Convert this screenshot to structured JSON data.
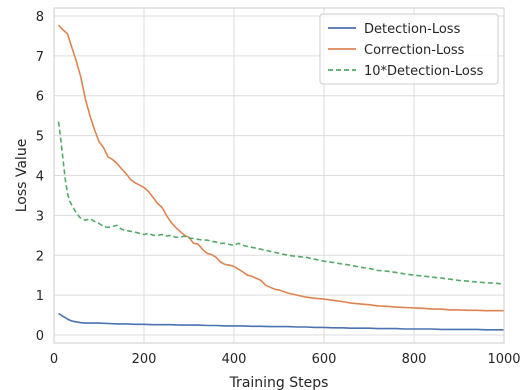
{
  "chart_data": {
    "type": "line",
    "xlabel": "Training Steps",
    "ylabel": "Loss Value",
    "xlim": [
      0,
      1000
    ],
    "ylim": [
      -0.2,
      8.2
    ],
    "xticks": [
      0,
      200,
      400,
      600,
      800,
      1000
    ],
    "yticks": [
      0,
      1,
      2,
      3,
      4,
      5,
      6,
      7,
      8
    ],
    "grid": true,
    "legend_position": "top-right",
    "series": [
      {
        "name": "Detection-Loss",
        "color": "#4c72b0",
        "style": "solid",
        "x": [
          10,
          20,
          30,
          40,
          50,
          60,
          70,
          80,
          90,
          100,
          120,
          140,
          160,
          180,
          200,
          220,
          240,
          260,
          280,
          300,
          320,
          340,
          360,
          380,
          400,
          420,
          440,
          460,
          480,
          500,
          520,
          540,
          560,
          580,
          600,
          620,
          640,
          660,
          680,
          700,
          720,
          740,
          760,
          780,
          800,
          820,
          840,
          860,
          880,
          900,
          920,
          940,
          960,
          980,
          1000
        ],
        "y": [
          0.54,
          0.47,
          0.4,
          0.35,
          0.33,
          0.31,
          0.3,
          0.3,
          0.3,
          0.3,
          0.29,
          0.28,
          0.28,
          0.27,
          0.27,
          0.26,
          0.26,
          0.26,
          0.25,
          0.25,
          0.25,
          0.24,
          0.24,
          0.23,
          0.23,
          0.23,
          0.22,
          0.22,
          0.21,
          0.21,
          0.21,
          0.2,
          0.2,
          0.19,
          0.19,
          0.18,
          0.18,
          0.17,
          0.17,
          0.17,
          0.16,
          0.16,
          0.16,
          0.15,
          0.15,
          0.15,
          0.15,
          0.14,
          0.14,
          0.14,
          0.14,
          0.14,
          0.13,
          0.13,
          0.13
        ]
      },
      {
        "name": "Correction-Loss",
        "color": "#dd8452",
        "style": "solid",
        "x": [
          10,
          20,
          30,
          40,
          50,
          60,
          70,
          80,
          90,
          100,
          110,
          120,
          130,
          140,
          150,
          160,
          170,
          180,
          190,
          200,
          210,
          220,
          230,
          240,
          250,
          260,
          270,
          280,
          290,
          300,
          310,
          320,
          330,
          340,
          350,
          360,
          370,
          380,
          390,
          400,
          410,
          420,
          430,
          440,
          450,
          460,
          470,
          480,
          490,
          500,
          520,
          540,
          560,
          580,
          600,
          620,
          640,
          660,
          680,
          700,
          720,
          740,
          760,
          780,
          800,
          820,
          840,
          860,
          880,
          900,
          920,
          940,
          960,
          980,
          1000
        ],
        "y": [
          7.77,
          7.65,
          7.55,
          7.2,
          6.85,
          6.45,
          5.9,
          5.5,
          5.15,
          4.85,
          4.7,
          4.47,
          4.4,
          4.3,
          4.17,
          4.05,
          3.9,
          3.82,
          3.76,
          3.7,
          3.6,
          3.45,
          3.3,
          3.2,
          3.0,
          2.83,
          2.7,
          2.6,
          2.5,
          2.45,
          2.3,
          2.28,
          2.15,
          2.05,
          2.02,
          1.95,
          1.83,
          1.77,
          1.75,
          1.72,
          1.65,
          1.58,
          1.5,
          1.47,
          1.42,
          1.37,
          1.25,
          1.2,
          1.15,
          1.13,
          1.05,
          1.0,
          0.95,
          0.92,
          0.9,
          0.87,
          0.84,
          0.8,
          0.78,
          0.76,
          0.73,
          0.72,
          0.7,
          0.69,
          0.68,
          0.67,
          0.65,
          0.65,
          0.63,
          0.63,
          0.62,
          0.62,
          0.61,
          0.61,
          0.61
        ]
      },
      {
        "name": "10*Detection-Loss",
        "color": "#55a868",
        "style": "dashed",
        "x": [
          10,
          15,
          20,
          25,
          30,
          35,
          40,
          50,
          60,
          70,
          80,
          90,
          100,
          110,
          120,
          130,
          140,
          150,
          160,
          170,
          180,
          190,
          200,
          210,
          220,
          230,
          240,
          250,
          260,
          270,
          280,
          290,
          300,
          310,
          320,
          330,
          340,
          350,
          360,
          370,
          380,
          390,
          400,
          410,
          420,
          430,
          440,
          460,
          480,
          500,
          520,
          540,
          560,
          580,
          600,
          620,
          640,
          660,
          680,
          700,
          720,
          740,
          760,
          780,
          800,
          820,
          840,
          860,
          880,
          900,
          920,
          940,
          960,
          980,
          1000
        ],
        "y": [
          5.35,
          4.9,
          4.4,
          3.9,
          3.55,
          3.35,
          3.25,
          3.05,
          2.92,
          2.88,
          2.92,
          2.85,
          2.8,
          2.72,
          2.7,
          2.72,
          2.75,
          2.65,
          2.62,
          2.6,
          2.58,
          2.55,
          2.52,
          2.55,
          2.5,
          2.5,
          2.52,
          2.48,
          2.5,
          2.45,
          2.45,
          2.48,
          2.43,
          2.42,
          2.4,
          2.38,
          2.38,
          2.35,
          2.33,
          2.3,
          2.3,
          2.27,
          2.25,
          2.3,
          2.25,
          2.22,
          2.2,
          2.15,
          2.1,
          2.05,
          2.0,
          1.97,
          1.95,
          1.9,
          1.85,
          1.82,
          1.78,
          1.75,
          1.7,
          1.67,
          1.62,
          1.6,
          1.57,
          1.53,
          1.5,
          1.48,
          1.45,
          1.43,
          1.4,
          1.37,
          1.35,
          1.33,
          1.31,
          1.3,
          1.28
        ]
      }
    ]
  }
}
